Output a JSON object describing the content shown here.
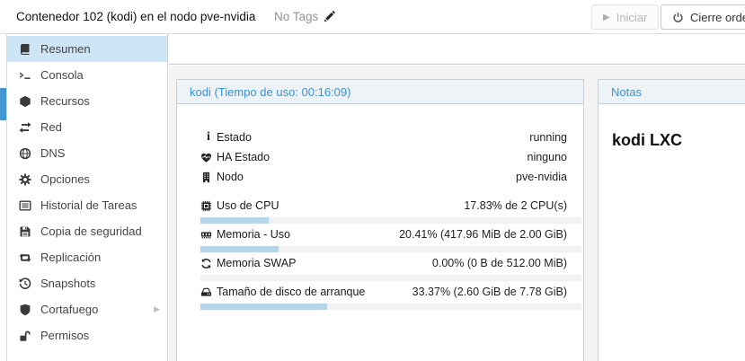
{
  "window": {
    "title": "Contenedor 102 (kodi) en el nodo pve-nvidia",
    "tags": "No Tags"
  },
  "toolbar": {
    "start_label": "Iniciar",
    "shutdown_label": "Cierre ordena"
  },
  "icons": {
    "play": "▶",
    "submenu_arrow": "▶",
    "info": "i"
  },
  "sidebar": {
    "items": [
      {
        "label": "Resumen",
        "icon": "book-icon",
        "selected": true
      },
      {
        "label": "Consola",
        "icon": "terminal-icon",
        "selected": false
      },
      {
        "label": "Recursos",
        "icon": "cube-icon",
        "selected": false
      },
      {
        "label": "Red",
        "icon": "exchange-icon",
        "selected": false
      },
      {
        "label": "DNS",
        "icon": "globe-icon",
        "selected": false
      },
      {
        "label": "Opciones",
        "icon": "gear-icon",
        "selected": false
      },
      {
        "label": "Historial de Tareas",
        "icon": "task-list-icon",
        "selected": false
      },
      {
        "label": "Copia de seguridad",
        "icon": "floppy-icon",
        "selected": false
      },
      {
        "label": "Replicación",
        "icon": "retweet-icon",
        "selected": false
      },
      {
        "label": "Snapshots",
        "icon": "history-icon",
        "selected": false
      },
      {
        "label": "Cortafuego",
        "icon": "shield-icon",
        "selected": false,
        "has_submenu": true
      },
      {
        "label": "Permisos",
        "icon": "unlock-icon",
        "selected": false
      }
    ]
  },
  "status_panel": {
    "title": "kodi (Tiempo de uso: 00:16:09)",
    "rows": [
      {
        "icon": "info-icon",
        "label": "Estado",
        "value": "running"
      },
      {
        "icon": "heartbeat-icon",
        "label": "HA Estado",
        "value": "ninguno"
      },
      {
        "icon": "building-icon",
        "label": "Nodo",
        "value": "pve-nvidia"
      }
    ],
    "usage_rows": [
      {
        "icon": "cpu-icon",
        "label": "Uso de CPU",
        "value": "17.83% de 2 CPU(s)",
        "percent": 17.83
      },
      {
        "icon": "memory-icon",
        "label": "Memoria - Uso",
        "value": "20.41% (417.96 MiB de 2.00 GiB)",
        "percent": 20.41
      },
      {
        "icon": "swap-icon",
        "label": "Memoria SWAP",
        "value": "0.00% (0 B de 512.00 MiB)",
        "percent": 0
      },
      {
        "icon": "disk-icon",
        "label": "Tamaño de disco de arranque",
        "value": "33.37% (2.60 GiB de 7.78 GiB)",
        "percent": 33.37
      }
    ]
  },
  "notes_panel": {
    "title": "Notas",
    "body": "kodi LXC"
  },
  "colors": {
    "accent_blue": "#3892d4",
    "selected_item_bg": "#cde5f5",
    "progress_fill": "#b5d5ec",
    "progress_track": "#f1f1f1",
    "tree_selection_blue": "#4296d2"
  }
}
